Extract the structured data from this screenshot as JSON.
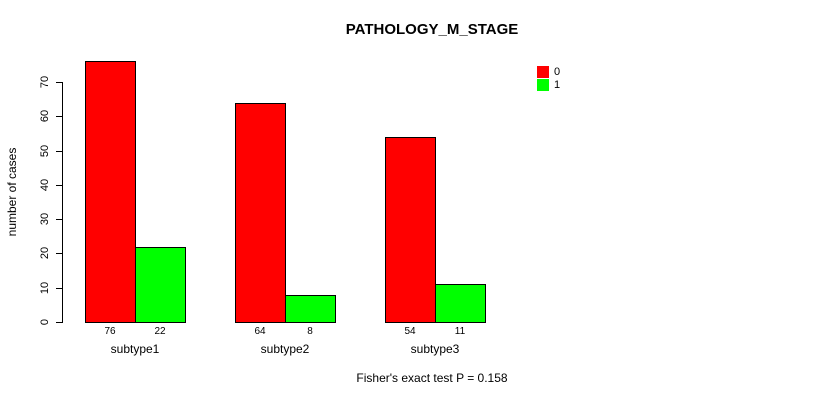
{
  "title": "PATHOLOGY_M_STAGE",
  "chart_data": {
    "type": "bar",
    "grouping": "grouped",
    "categories": [
      "subtype1",
      "subtype2",
      "subtype3"
    ],
    "series": [
      {
        "name": "0",
        "color": "#ff0000",
        "values": [
          76,
          64,
          54
        ]
      },
      {
        "name": "1",
        "color": "#00ff00",
        "values": [
          22,
          8,
          11
        ]
      }
    ],
    "bar_value_labels": [
      [
        "76",
        "22"
      ],
      [
        "64",
        "8"
      ],
      [
        "54",
        "11"
      ]
    ],
    "title": "PATHOLOGY_M_STAGE",
    "xlabel": "",
    "ylabel": "number of cases",
    "ylim": [
      0,
      70
    ],
    "yticks": [
      0,
      10,
      20,
      30,
      40,
      50,
      60,
      70
    ],
    "grid": false,
    "legend_position": "top-right",
    "bar_border_color": "#000000",
    "axis_color": "#000000",
    "annotation": "Fisher's exact test P = 0.158"
  },
  "legend": {
    "entries": [
      {
        "label": "0",
        "color": "#ff0000"
      },
      {
        "label": "1",
        "color": "#00ff00"
      }
    ]
  },
  "footer": {
    "stat_text": "Fisher's exact test P = 0.158"
  }
}
